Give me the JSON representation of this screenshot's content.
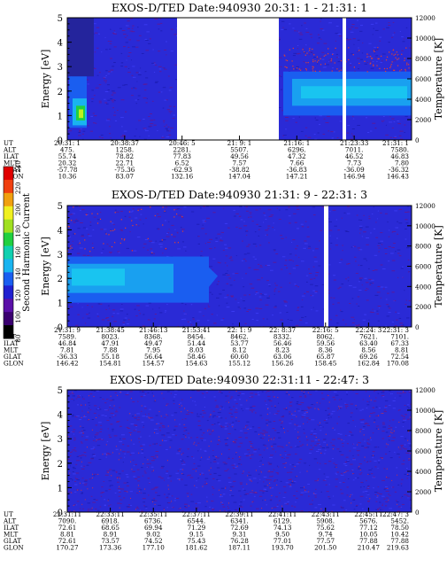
{
  "chart_data": [
    {
      "type": "heatmap",
      "title": "EXOS-D/TED   Date:940930  20:31: 1 - 21:31: 1",
      "ylabel": "Energy [eV]",
      "y2label": "Temperature [K]",
      "ylim": [
        0,
        5
      ],
      "y2lim": [
        0,
        12000
      ],
      "yticks": [
        "0",
        "1",
        "2",
        "3",
        "4",
        "5"
      ],
      "y2ticks": [
        "0",
        "2000",
        "4000",
        "6000",
        "8000",
        "10000",
        "12000"
      ],
      "gaps": [
        "20:48–21:09 (no data)",
        "21:21–21:22 (no data)"
      ],
      "table": {
        "labels": [
          "UT",
          "ALT",
          "ILAT",
          "MLT",
          "GLAT",
          "GLON"
        ],
        "columns": [
          [
            "20:31: 1",
            "475.",
            "55.74",
            "20.32",
            "-57.78",
            "10.36"
          ],
          [
            "20:38:37",
            "1258.",
            "78.82",
            "22.71",
            "-75.36",
            "83.07"
          ],
          [
            "20:46: 5",
            "2281.",
            "77.83",
            "6.52",
            "-62.93",
            "132.16"
          ],
          [
            "21: 9: 1",
            "5507.",
            "49.56",
            "7.57",
            "-38.82",
            "147.04"
          ],
          [
            "21:16: 1",
            "6296.",
            "47.32",
            "7.66",
            "-36.83",
            "147.21"
          ],
          [
            "21:23:33",
            "7011.",
            "46.52",
            "7.73",
            "-36.09",
            "146.94"
          ],
          [
            "21:31: 1",
            "7580.",
            "46.83",
            "7.80",
            "-36.32",
            "146.43"
          ]
        ]
      }
    },
    {
      "type": "heatmap",
      "title": "EXOS-D/TED   Date:940930  21:31: 9 - 22:31: 3",
      "ylabel": "Energy [eV]",
      "y2label": "Temperature [K]",
      "ylim": [
        0,
        5
      ],
      "y2lim": [
        0,
        12000
      ],
      "yticks": [
        "0",
        "1",
        "2",
        "3",
        "4",
        "5"
      ],
      "y2ticks": [
        "0",
        "2000",
        "4000",
        "6000",
        "8000",
        "10000",
        "12000"
      ],
      "gaps": [
        "22:17–22:18 (no data)"
      ],
      "table": {
        "labels": [
          "UT",
          "ALT",
          "ILAT",
          "MLT",
          "GLAT",
          "GLON"
        ],
        "columns": [
          [
            "21:31: 9",
            "7589.",
            "46.84",
            "7.81",
            "-36.33",
            "146.42"
          ],
          [
            "21:38:45",
            "8023.",
            "47.91",
            "7.88",
            "55.18",
            "154.81"
          ],
          [
            "21:46:13",
            "8368.",
            "49.47",
            "7.95",
            "56.64",
            "154.57"
          ],
          [
            "21:53:41",
            "8454.",
            "51.44",
            "8.03",
            "58.46",
            "154.63"
          ],
          [
            "22: 1: 9",
            "8462.",
            "53.77",
            "8.12",
            "60.60",
            "155.12"
          ],
          [
            "22: 8:37",
            "8332.",
            "56.46",
            "8.23",
            "63.06",
            "156.26"
          ],
          [
            "22:16: 5",
            "8062.",
            "59.56",
            "8.36",
            "65.87",
            "158.45"
          ],
          [
            "22:24: 3",
            "7621.",
            "63.40",
            "8.56",
            "69.26",
            "162.84"
          ],
          [
            "22:31: 3",
            "7101.",
            "67.33",
            "8.81",
            "72.54",
            "170.08"
          ]
        ]
      }
    },
    {
      "type": "heatmap",
      "title": "EXOS-D/TED   Date:940930  22:31:11 - 22:47: 3",
      "ylabel": "Energy [eV]",
      "y2label": "Temperature [K]",
      "ylim": [
        0,
        5
      ],
      "y2lim": [
        0,
        12000
      ],
      "yticks": [
        "0",
        "1",
        "2",
        "3",
        "4",
        "5"
      ],
      "y2ticks": [
        "0",
        "2000",
        "4000",
        "6000",
        "8000",
        "10000",
        "12000"
      ],
      "table": {
        "labels": [
          "UT",
          "ALT",
          "ILAT",
          "MLT",
          "GLAT",
          "GLON"
        ],
        "columns": [
          [
            "22:31:11",
            "7090.",
            "72.61",
            "8.81",
            "72.61",
            "170.27"
          ],
          [
            "22:33:11",
            "6918.",
            "68.65",
            "8.91",
            "73.57",
            "173.36"
          ],
          [
            "22:35:11",
            "6736.",
            "69.94",
            "9.02",
            "74.52",
            "177.10"
          ],
          [
            "22:37:11",
            "6544.",
            "71.29",
            "9.15",
            "75.43",
            "181.62"
          ],
          [
            "22:39:11",
            "6341.",
            "72.69",
            "9.31",
            "76.28",
            "187.11"
          ],
          [
            "22:41:11",
            "6129.",
            "74.13",
            "9.50",
            "77.01",
            "193.70"
          ],
          [
            "22:43:11",
            "5908.",
            "75.62",
            "9.74",
            "77.57",
            "201.50"
          ],
          [
            "22:45:11",
            "5676.",
            "77.12",
            "10.05",
            "77.88",
            "210.47"
          ],
          [
            "22:47: 3",
            "5452.",
            "78.50",
            "10.42",
            "77.88",
            "219.63"
          ]
        ]
      }
    }
  ],
  "colorbar": {
    "label": "Second Harmonic Current",
    "ticks": [
      "80",
      "100",
      "120",
      "140",
      "160",
      "180",
      "200",
      "220",
      "240"
    ],
    "range": [
      80,
      240
    ],
    "colors": [
      "#000000",
      "#3a0070",
      "#5a10a8",
      "#2020d0",
      "#1a5ef0",
      "#19b4f0",
      "#10d0b0",
      "#20d040",
      "#a0e020",
      "#f0f020",
      "#f0a010",
      "#f04010",
      "#e00000"
    ]
  }
}
